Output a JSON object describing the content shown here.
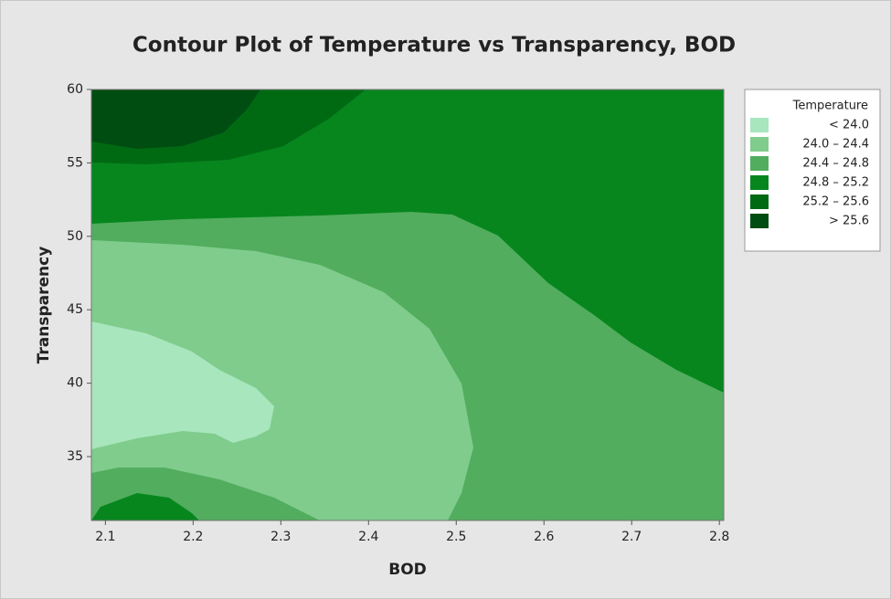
{
  "chart_data": {
    "type": "contour",
    "title": "Contour Plot of Temperature vs Transparency, BOD",
    "x_label": "BOD",
    "y_label": "Transparency",
    "xlim": [
      2.084,
      2.805
    ],
    "xticks": [
      2.1,
      2.2,
      2.3,
      2.4,
      2.5,
      2.6,
      2.7,
      2.8
    ],
    "ylim": [
      30.65,
      60
    ],
    "yticks": [
      35,
      40,
      45,
      50,
      55,
      60
    ],
    "legend_title": "Temperature",
    "legend_position": "right",
    "levels": [
      {
        "label": "< 24.0",
        "color": "#a8e6bd"
      },
      {
        "label": "24.0 – 24.4",
        "color": "#7fcc8c"
      },
      {
        "label": "24.4 – 24.8",
        "color": "#52ad5e"
      },
      {
        "label": "24.8 – 25.2",
        "color": "#07861e"
      },
      {
        "label": "25.2 – 25.6",
        "color": "#006a13"
      },
      {
        "label": "> 25.6",
        "color": "#004d12"
      }
    ]
  }
}
